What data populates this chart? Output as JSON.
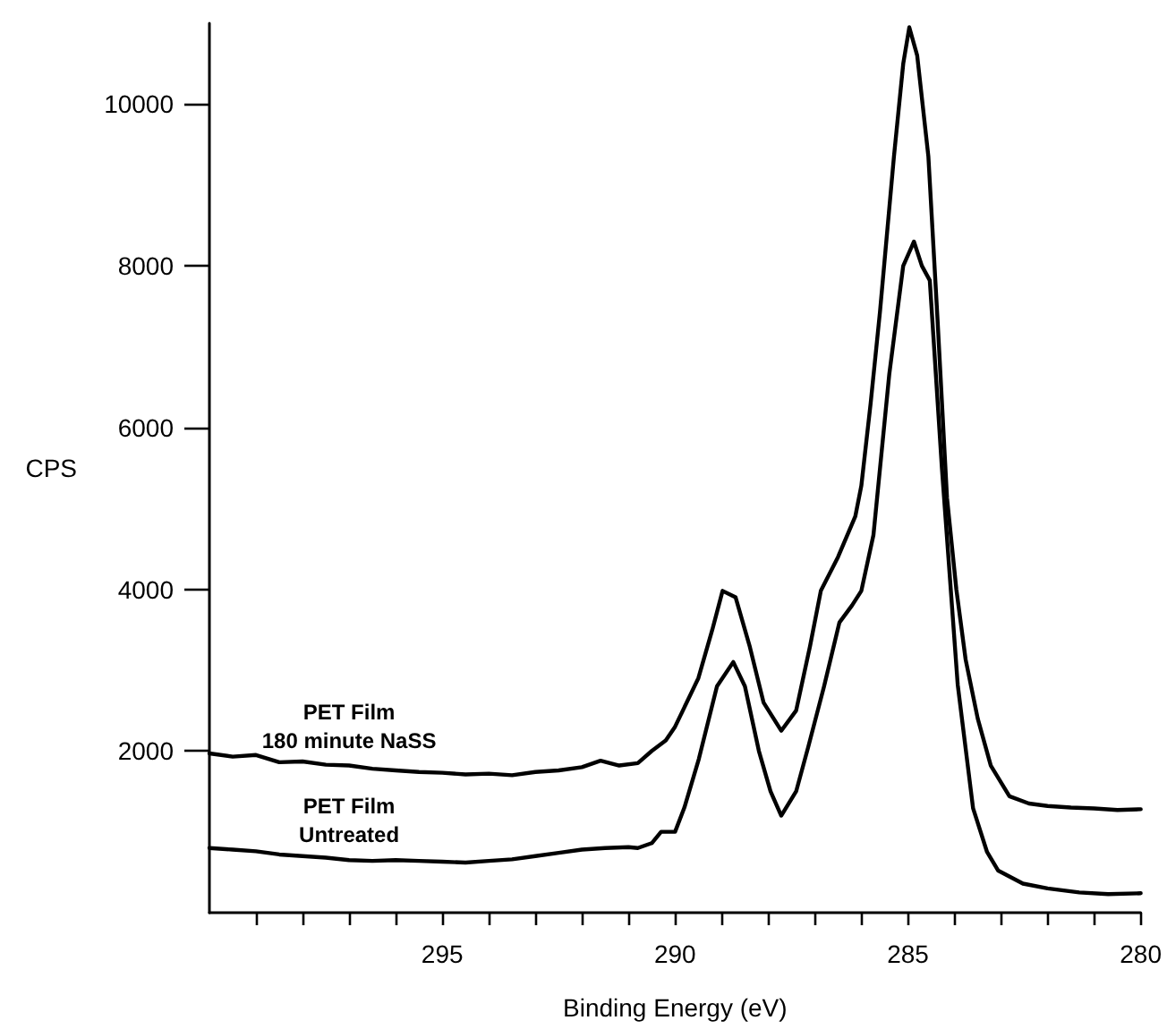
{
  "chart_data": {
    "type": "line",
    "xlabel": "Binding Energy (eV)",
    "ylabel": "CPS",
    "xlim": [
      300,
      280
    ],
    "xticks": [
      {
        "value": 299,
        "label": null
      },
      {
        "value": 298,
        "label": null
      },
      {
        "value": 297,
        "label": null
      },
      {
        "value": 296,
        "label": null
      },
      295,
      {
        "value": 294,
        "label": null
      },
      {
        "value": 293,
        "label": null
      },
      {
        "value": 292,
        "label": null
      },
      {
        "value": 291,
        "label": null
      },
      290,
      {
        "value": 289,
        "label": null
      },
      {
        "value": 288,
        "label": null
      },
      {
        "value": 287,
        "label": null
      },
      {
        "value": 286,
        "label": null
      },
      285,
      {
        "value": 284,
        "label": null
      },
      {
        "value": 283,
        "label": null
      },
      {
        "value": 282,
        "label": null
      },
      {
        "value": 281,
        "label": null
      },
      280
    ],
    "ylim": [
      0,
      11000
    ],
    "yticks": [
      2000,
      4000,
      6000,
      8000,
      10000
    ],
    "grid": false,
    "legend": false,
    "marker": "none",
    "line_style": "solid",
    "series": [
      {
        "name": "PET Film\n180 minute NaSS",
        "color": "#000000",
        "x": [
          300,
          299.5,
          299,
          298.5,
          298,
          297.5,
          297,
          296.5,
          296,
          295.5,
          295,
          294.5,
          294,
          293.5,
          293,
          292.5,
          292,
          291.6,
          291.2,
          290.8,
          290.5,
          290.2,
          290,
          289.5,
          289.2,
          288.98,
          288.7,
          288.4,
          288.1,
          287.72,
          287.4,
          287.1,
          286.87,
          286.5,
          286.13,
          286,
          285.8,
          285.6,
          285.3,
          285.1,
          284.97,
          284.8,
          284.56,
          284.36,
          284.16,
          283.96,
          283.76,
          283.5,
          283.22,
          282.82,
          282.4,
          282,
          281.5,
          281,
          280.5,
          280
        ],
        "values": [
          1970,
          1930,
          1950,
          1860,
          1870,
          1830,
          1820,
          1780,
          1760,
          1740,
          1730,
          1710,
          1720,
          1700,
          1740,
          1760,
          1800,
          1880,
          1820,
          1850,
          2000,
          2130,
          2300,
          2900,
          3500,
          3980,
          3900,
          3300,
          2600,
          2250,
          2500,
          3300,
          3980,
          4400,
          4900,
          5280,
          6300,
          7430,
          9350,
          10500,
          10950,
          10600,
          9350,
          7300,
          5130,
          4000,
          3130,
          2400,
          1820,
          1440,
          1350,
          1320,
          1300,
          1290,
          1270,
          1280
        ]
      },
      {
        "name": "PET Film\nUntreated",
        "color": "#000000",
        "x": [
          300,
          299.5,
          299,
          298.5,
          298,
          297.5,
          297,
          296.5,
          296,
          295.5,
          295,
          294.5,
          294,
          293.5,
          293,
          292.5,
          292,
          291.5,
          291,
          290.8,
          290.5,
          290.3,
          290,
          289.8,
          289.49,
          289.1,
          288.75,
          288.5,
          288.2,
          287.95,
          287.72,
          287.4,
          287.14,
          286.8,
          286.47,
          286.2,
          286,
          285.74,
          285.4,
          285.1,
          284.87,
          284.7,
          284.53,
          284.27,
          283.93,
          283.6,
          283.3,
          283.06,
          282.53,
          282,
          281.32,
          280.7,
          280
        ],
        "values": [
          800,
          780,
          760,
          720,
          700,
          680,
          650,
          640,
          650,
          640,
          630,
          620,
          640,
          660,
          700,
          740,
          780,
          800,
          810,
          800,
          860,
          1000,
          1000,
          1300,
          1900,
          2800,
          3100,
          2800,
          2000,
          1500,
          1200,
          1500,
          2050,
          2800,
          3590,
          3800,
          3980,
          4670,
          6660,
          8000,
          8300,
          8000,
          7820,
          5500,
          2820,
          1290,
          750,
          520,
          360,
          300,
          250,
          230,
          240
        ]
      }
    ]
  }
}
